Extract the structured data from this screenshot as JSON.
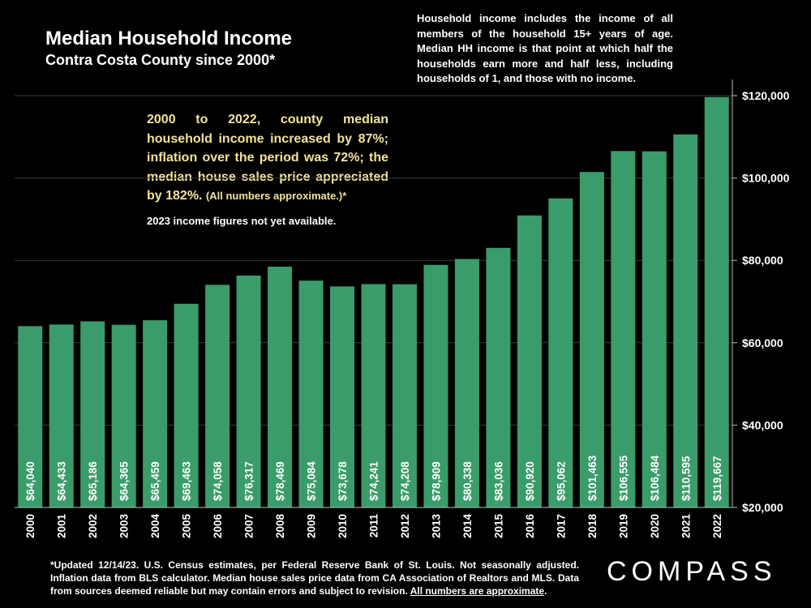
{
  "header": {
    "title": "Median Household Income",
    "subtitle": "Contra Costa County since 2000*"
  },
  "notes": {
    "definition": "Household income includes the income of all members of the household 15+ years of age. Median HH income is that point at which half the households earn more and half less, including households of 1, and those with no income.",
    "highlight_main": "2000 to 2022, county median household income increased by 87%; inflation over the period was 72%; the median house sales price appreciated by 182%.",
    "highlight_small": "(All numbers approximate.)*",
    "pending": "2023 income figures not yet available."
  },
  "footer": {
    "footnote": "*Updated 12/14/23. U.S. Census estimates, per Federal Reserve Bank of St. Louis. Not seasonally adjusted. Inflation data from BLS calculator. Median house sales price data from CA Association of Realtors and MLS. Data from sources deemed reliable but may contain errors and subject to revision.",
    "footnote_underlined": "All numbers are approximate",
    "footnote_end": ".",
    "logo": "COMPASS"
  },
  "colors": {
    "bar": "#3a9c6a",
    "background": "#000000",
    "highlight_text": "#f2e39a",
    "grid": "#3a3a3a"
  },
  "chart_data": {
    "type": "bar",
    "title": "Median Household Income",
    "xlabel": "",
    "ylabel": "",
    "ylim": [
      20000,
      120000
    ],
    "yticks": [
      20000,
      40000,
      60000,
      80000,
      100000,
      120000
    ],
    "ytick_labels": [
      "$20,000",
      "$40,000",
      "$60,000",
      "$80,000",
      "$100,000",
      "$120,000"
    ],
    "grid": true,
    "y_axis_side": "right",
    "categories": [
      "2000",
      "2001",
      "2002",
      "2003",
      "2004",
      "2005",
      "2006",
      "2007",
      "2008",
      "2009",
      "2010",
      "2011",
      "2012",
      "2013",
      "2014",
      "2015",
      "2016",
      "2017",
      "2018",
      "2019",
      "2020",
      "2021",
      "2022"
    ],
    "values": [
      64040,
      64433,
      65186,
      64365,
      65459,
      69463,
      74058,
      76317,
      78469,
      75084,
      73678,
      74241,
      74208,
      78909,
      80338,
      83036,
      90920,
      95062,
      101463,
      106555,
      106484,
      110595,
      119667
    ],
    "value_labels": [
      "$64,040",
      "$64,433",
      "$65,186",
      "$64,365",
      "$65,459",
      "$69,463",
      "$74,058",
      "$76,317",
      "$78,469",
      "$75,084",
      "$73,678",
      "$74,241",
      "$74,208",
      "$78,909",
      "$80,338",
      "$83,036",
      "$90,920",
      "$95,062",
      "$101,463",
      "$106,555",
      "$106,484",
      "$110,595",
      "$119,667"
    ]
  }
}
